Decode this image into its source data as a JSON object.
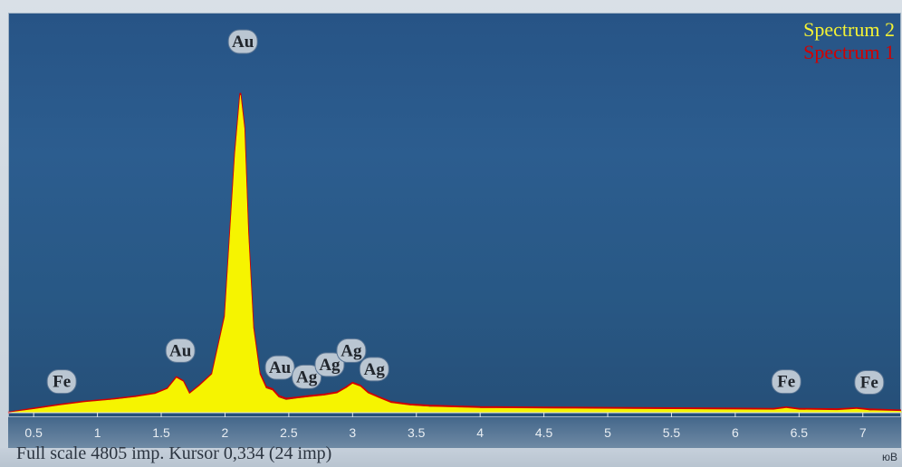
{
  "chart_data": {
    "type": "area",
    "xlim": [
      0.3,
      7.3
    ],
    "ylim": [
      0,
      4805
    ],
    "x_ticks": [
      "0.5",
      "1",
      "1.5",
      "2",
      "2.5",
      "3",
      "3.5",
      "4",
      "4.5",
      "5",
      "5.5",
      "6",
      "6.5",
      "7"
    ],
    "series": [
      {
        "name": "Spectrum 2",
        "color": "#f6f400",
        "x": [
          0.3,
          0.5,
          0.7,
          0.9,
          1.1,
          1.3,
          1.45,
          1.55,
          1.62,
          1.67,
          1.72,
          1.8,
          1.9,
          2.0,
          2.08,
          2.12,
          2.15,
          2.18,
          2.22,
          2.27,
          2.32,
          2.37,
          2.42,
          2.48,
          2.56,
          2.66,
          2.78,
          2.88,
          2.95,
          3.0,
          3.06,
          3.12,
          3.2,
          3.3,
          3.45,
          3.6,
          3.8,
          4.0,
          4.5,
          5.0,
          5.5,
          6.0,
          6.3,
          6.4,
          6.5,
          6.8,
          6.95,
          7.05,
          7.3
        ],
        "values": [
          0,
          45,
          95,
          140,
          170,
          210,
          250,
          320,
          470,
          420,
          250,
          360,
          520,
          1300,
          3500,
          4300,
          3850,
          2450,
          1150,
          520,
          330,
          300,
          205,
          170,
          190,
          210,
          230,
          260,
          330,
          390,
          350,
          260,
          200,
          130,
          95,
          80,
          70,
          60,
          55,
          50,
          45,
          40,
          38,
          60,
          38,
          32,
          48,
          30,
          20
        ]
      },
      {
        "name": "Spectrum 1",
        "color": "#d10000",
        "x": [
          0.3,
          0.5,
          0.7,
          0.9,
          1.1,
          1.3,
          1.45,
          1.55,
          1.62,
          1.67,
          1.72,
          1.8,
          1.9,
          2.0,
          2.08,
          2.12,
          2.15,
          2.18,
          2.22,
          2.27,
          2.32,
          2.37,
          2.42,
          2.48,
          2.56,
          2.66,
          2.78,
          2.88,
          2.95,
          3.0,
          3.06,
          3.12,
          3.2,
          3.3,
          3.45,
          3.6,
          3.8,
          4.0,
          4.5,
          5.0,
          5.5,
          6.0,
          6.3,
          6.4,
          6.5,
          6.8,
          6.95,
          7.05,
          7.3
        ],
        "values": [
          0,
          55,
          105,
          150,
          180,
          220,
          260,
          330,
          480,
          430,
          260,
          370,
          530,
          1320,
          3520,
          4320,
          3870,
          2470,
          1170,
          540,
          350,
          320,
          225,
          190,
          205,
          225,
          245,
          275,
          345,
          405,
          365,
          275,
          215,
          145,
          110,
          95,
          85,
          75,
          70,
          65,
          60,
          55,
          52,
          72,
          52,
          46,
          60,
          44,
          30
        ]
      }
    ],
    "peak_labels": [
      {
        "text": "Au",
        "x": 2.14,
        "y": 4805
      },
      {
        "text": "Au",
        "x": 1.65,
        "y": 620
      },
      {
        "text": "Fe",
        "x": 0.72,
        "y": 200
      },
      {
        "text": "Au",
        "x": 2.43,
        "y": 390
      },
      {
        "text": "Ag",
        "x": 2.64,
        "y": 265
      },
      {
        "text": "Ag",
        "x": 2.82,
        "y": 430
      },
      {
        "text": "Ag",
        "x": 2.99,
        "y": 620
      },
      {
        "text": "Ag",
        "x": 3.17,
        "y": 370
      },
      {
        "text": "Fe",
        "x": 6.4,
        "y": 200
      },
      {
        "text": "Fe",
        "x": 7.05,
        "y": 190
      }
    ],
    "legend": {
      "placement": "top-right"
    }
  },
  "status": {
    "text": "Full scale  4805 imp. Kursor 0,334 (24 imp)",
    "unit": "юВ"
  },
  "colors": {
    "plot_bg": "#2a5a8b",
    "spectrum2": "#f6f400",
    "spectrum1": "#d10000"
  }
}
